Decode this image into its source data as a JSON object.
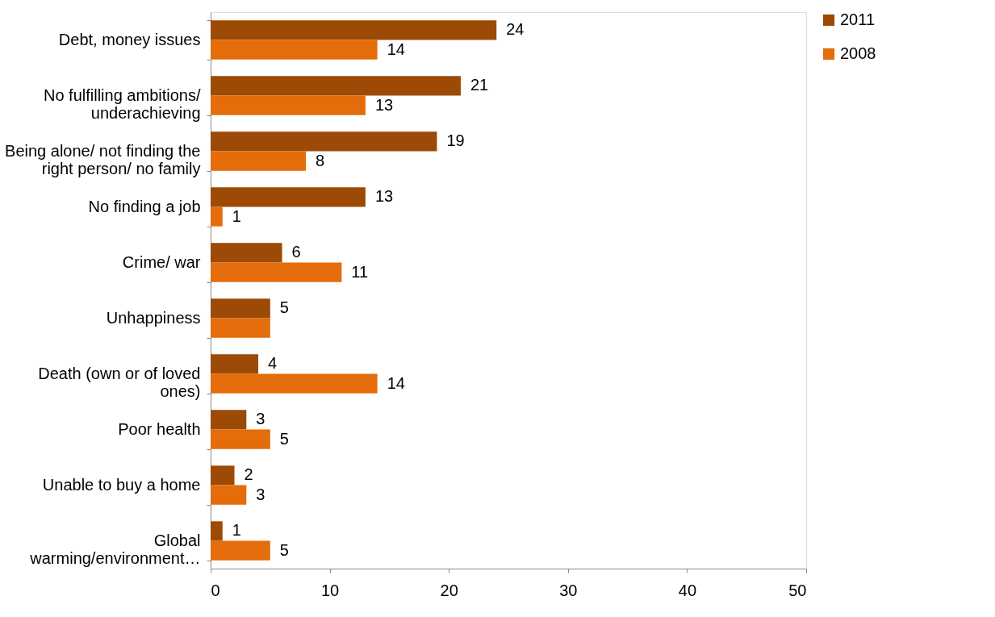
{
  "chart_data": {
    "type": "bar",
    "orientation": "horizontal",
    "categories": [
      "Debt, money issues",
      "No fulfilling ambitions/\nunderachieving",
      "Being alone/ not finding the\nright person/ no family",
      "No finding a job",
      "Crime/ war",
      "Unhappiness",
      "Death (own or of loved\nones)",
      "Poor health",
      "Unable to buy a home",
      "Global\nwarming/environment…"
    ],
    "series": [
      {
        "name": "2011",
        "color": "#9c4a06",
        "values": [
          24,
          21,
          19,
          13,
          6,
          5,
          4,
          3,
          2,
          1
        ],
        "value_labels": [
          "24",
          "21",
          "19",
          "13",
          "6",
          "5",
          "4",
          "3",
          "2",
          "1"
        ]
      },
      {
        "name": "2008",
        "color": "#e46c0a",
        "values": [
          14,
          13,
          8,
          1,
          11,
          5,
          14,
          5,
          3,
          5
        ],
        "value_labels": [
          "14",
          "13",
          "8",
          "1",
          "11",
          null,
          "14",
          "5",
          "3",
          "5"
        ]
      }
    ],
    "xlim": [
      0,
      50
    ],
    "xticks": [
      0,
      10,
      20,
      30,
      40,
      50
    ],
    "grid": false,
    "legend": "right"
  }
}
